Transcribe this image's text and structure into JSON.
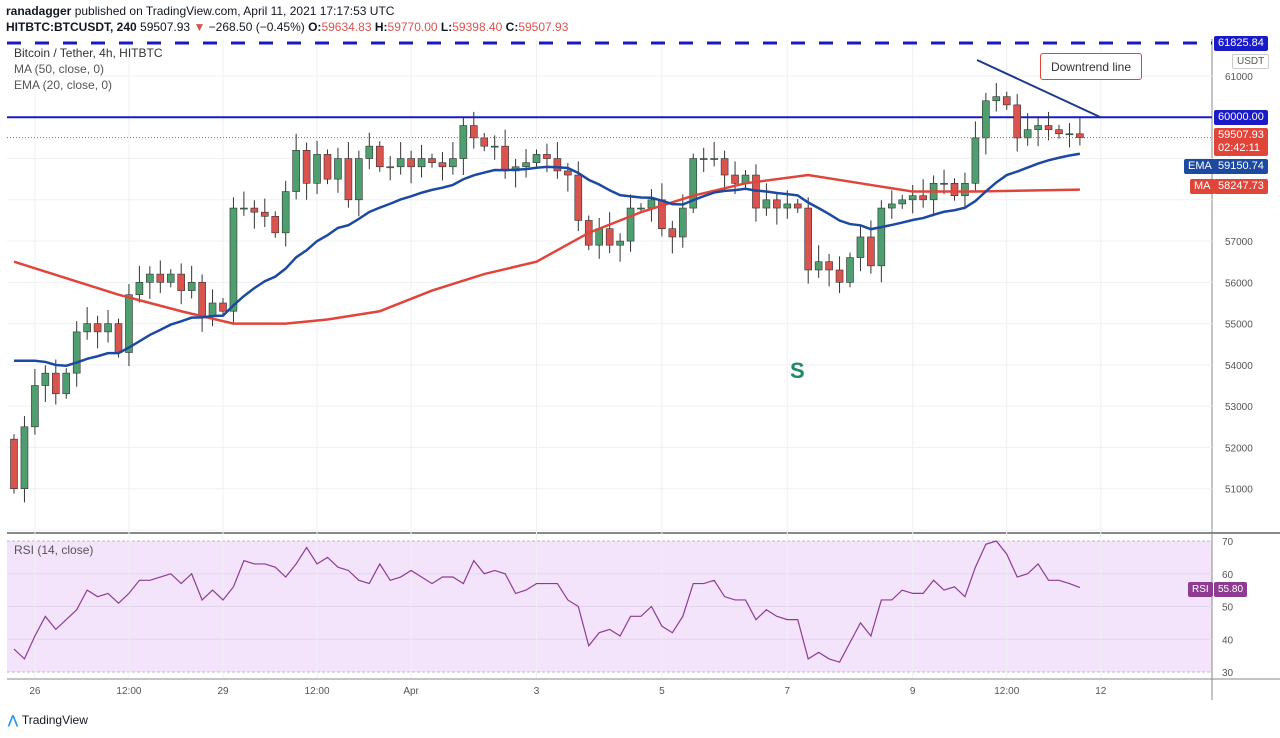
{
  "header": {
    "publisher": "ranadagger",
    "published_text": "published on TradingView.com, April 11, 2021 17:17:53 UTC",
    "symbol": "HITBTC:BTCUSDT, 240",
    "last": "59507.93",
    "change": "−268.50 (−0.45%)",
    "o_label": "O:",
    "o": "59634.83",
    "h_label": "H:",
    "h": "59770.00",
    "l_label": "L:",
    "l": "59398.40",
    "c_label": "C:",
    "c": "59507.93"
  },
  "legend": {
    "title": "Bitcoin / Tether, 4h, HITBTC",
    "ma": "MA (50, close, 0)",
    "ema": "EMA (20, close, 0)",
    "rsi": "RSI (14, close)"
  },
  "axis": {
    "currency": "USDT",
    "high_label": "61825.84",
    "level_label": "60000.00",
    "price_label": "59507.93",
    "countdown": "02:42:11",
    "ema_tag": "EMA",
    "ema_value": "59150.74",
    "ma_tag": "MA",
    "ma_value": "58247.73",
    "rsi_tag": "RSI",
    "rsi_value": "55.80"
  },
  "annotations": {
    "trendline": "Downtrend line",
    "pattern": "S"
  },
  "brand": "TradingView",
  "colors": {
    "up": "#4f9e6f",
    "down": "#d9534f",
    "ema": "#1c4aa0",
    "ma": "#e0453a",
    "level": "#1a1ac8",
    "rsi": "#8e3c92",
    "rsi_bg": "#f3e3fb"
  },
  "chart_data": {
    "type": "candlestick",
    "title": "Bitcoin / Tether, 4h, HITBTC",
    "ylim": [
      50000,
      61825.84
    ],
    "yticks": [
      50000,
      51000,
      52000,
      53000,
      54000,
      55000,
      56000,
      57000,
      58000,
      59000,
      60000,
      61000
    ],
    "xticks": [
      {
        "label": "26",
        "i": 2
      },
      {
        "label": "12:00",
        "i": 11
      },
      {
        "label": "29",
        "i": 20
      },
      {
        "label": "12:00",
        "i": 29
      },
      {
        "label": "Apr",
        "i": 38
      },
      {
        "label": "3",
        "i": 50
      },
      {
        "label": "5",
        "i": 62
      },
      {
        "label": "7",
        "i": 74
      },
      {
        "label": "9",
        "i": 86
      },
      {
        "label": "12:00",
        "i": 95
      },
      {
        "label": "12",
        "i": 104
      }
    ],
    "first_open": 52200,
    "closes": [
      51000,
      52500,
      53500,
      53800,
      53300,
      53800,
      54800,
      55000,
      54800,
      55000,
      54300,
      55700,
      56000,
      56200,
      56000,
      56200,
      55800,
      56000,
      55200,
      55500,
      55300,
      57800,
      57800,
      57700,
      57600,
      57200,
      58200,
      59200,
      58400,
      59100,
      58500,
      59000,
      58000,
      59000,
      59300,
      58800,
      58800,
      59000,
      58800,
      59000,
      58900,
      58800,
      59000,
      59800,
      59500,
      59300,
      59300,
      58700,
      58800,
      58900,
      59100,
      59000,
      58700,
      58600,
      57500,
      56900,
      57300,
      56900,
      57000,
      57800,
      57800,
      58000,
      57300,
      57100,
      57800,
      59000,
      59000,
      59000,
      58600,
      58400,
      58600,
      57800,
      58000,
      57800,
      57900,
      57800,
      56300,
      56500,
      56300,
      56000,
      56600,
      57100,
      56400,
      57800,
      57900,
      58000,
      58100,
      58000,
      58400,
      58400,
      58100,
      58400,
      59500,
      60400,
      60500,
      60300,
      59500,
      59700,
      59800,
      59700,
      59600,
      59600,
      59507.93
    ],
    "ema_seed": 54100,
    "ma50": [
      [
        0,
        56500
      ],
      [
        5,
        56100
      ],
      [
        10,
        55700
      ],
      [
        16,
        55300
      ],
      [
        21,
        55000
      ],
      [
        26,
        55000
      ],
      [
        30,
        55100
      ],
      [
        35,
        55300
      ],
      [
        40,
        55800
      ],
      [
        45,
        56200
      ],
      [
        50,
        56500
      ],
      [
        55,
        57200
      ],
      [
        60,
        57700
      ],
      [
        65,
        58100
      ],
      [
        70,
        58400
      ],
      [
        76,
        58600
      ],
      [
        81,
        58400
      ],
      [
        86,
        58200
      ],
      [
        92,
        58200
      ],
      [
        102,
        58247.73
      ]
    ],
    "levels": [
      {
        "label": "60000.00",
        "value": 60000
      },
      {
        "label": "61825.84",
        "value": 61825.84
      }
    ],
    "rsi": {
      "ylim": [
        30,
        70
      ],
      "yticks": [
        30,
        40,
        50,
        60,
        70
      ],
      "values": [
        37,
        34,
        41,
        47,
        43,
        46,
        49,
        55,
        53,
        54,
        51,
        54,
        58,
        58,
        59,
        60,
        57,
        60,
        52,
        55,
        52,
        56,
        64,
        63,
        63,
        62,
        59,
        63,
        68,
        63,
        65,
        62,
        61,
        58,
        57,
        63,
        58,
        59,
        61,
        59,
        57,
        59,
        59,
        57,
        64,
        60,
        61,
        60,
        54,
        55,
        57,
        57,
        57,
        52,
        50,
        38,
        42,
        43,
        41,
        47,
        47,
        50,
        44,
        42,
        47,
        57,
        57,
        58,
        53,
        52,
        52,
        46,
        49,
        47,
        46,
        46,
        34,
        36,
        34,
        33,
        39,
        45,
        41,
        52,
        52,
        55,
        54,
        54,
        58,
        55,
        56,
        53,
        62,
        69,
        70,
        66,
        59,
        60,
        63,
        58,
        58,
        57,
        55.8
      ]
    }
  }
}
